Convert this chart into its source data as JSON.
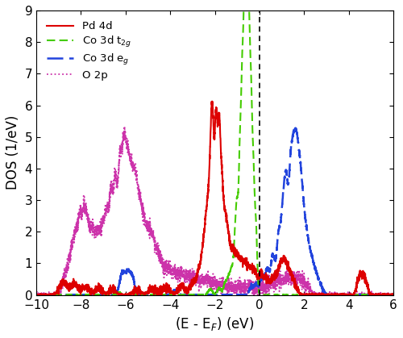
{
  "title": "",
  "xlabel": "(E - E$_F$) (eV)",
  "ylabel": "DOS (1/eV)",
  "xlim": [
    -10,
    6
  ],
  "ylim": [
    0,
    9
  ],
  "xticks": [
    -10,
    -8,
    -6,
    -4,
    -2,
    0,
    2,
    4,
    6
  ],
  "yticks": [
    0,
    1,
    2,
    3,
    4,
    5,
    6,
    7,
    8,
    9
  ],
  "fermi_line_x": 0,
  "colors": {
    "Pd4d": "#dd0000",
    "Co3d_t2g": "#44cc00",
    "Co3d_eg": "#2244dd",
    "O2p": "#cc33aa"
  },
  "legend_labels": [
    "Pd 4d",
    "Co 3d t$_{2g}$",
    "Co 3d e$_g$",
    "O 2p"
  ],
  "figsize": [
    5.0,
    4.19
  ],
  "dpi": 100
}
